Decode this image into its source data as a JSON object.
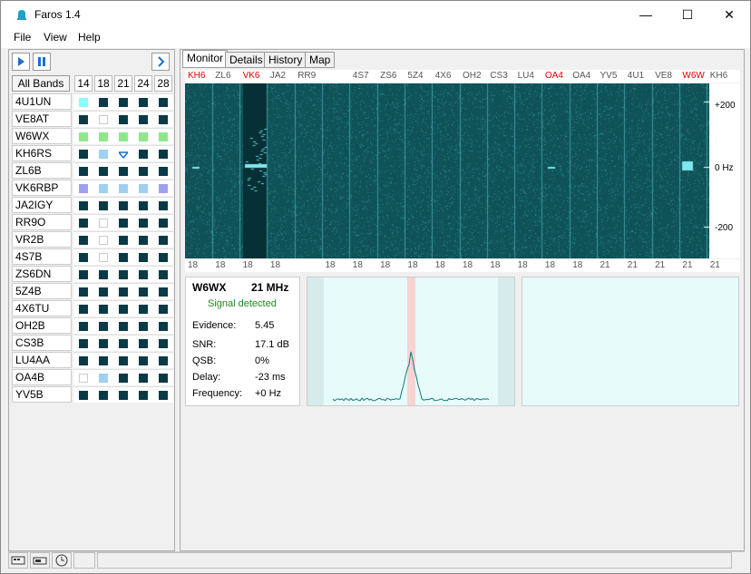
{
  "window": {
    "title": "Faros 1.4"
  },
  "menu": [
    "File",
    "View",
    "Help"
  ],
  "left": {
    "all_bands": "All Bands",
    "bands": [
      "14",
      "18",
      "21",
      "24",
      "28"
    ],
    "rows": [
      {
        "call": "4U1UN",
        "cells": [
          "#8ff",
          "#0a3a45",
          "#0a3a45",
          "#0a3a45",
          "#0a3a45"
        ]
      },
      {
        "call": "VE8AT",
        "cells": [
          "#0a3a45",
          "empty",
          "#0a3a45",
          "#0a3a45",
          "#0a3a45"
        ]
      },
      {
        "call": "W6WX",
        "cells": [
          "#8ee88a",
          "#8ee88a",
          "#8ee88a",
          "#8ee88a",
          "#8ee88a"
        ]
      },
      {
        "call": "KH6RS",
        "cells": [
          "#0a3a45",
          "#9fd0f0",
          "tri",
          "#0a3a45",
          "#0a3a45"
        ]
      },
      {
        "call": "ZL6B",
        "cells": [
          "#0a3a45",
          "#0a3a45",
          "#0a3a45",
          "#0a3a45",
          "#0a3a45"
        ]
      },
      {
        "call": "VK6RBP",
        "cells": [
          "#a0a0f0",
          "#9fd0f0",
          "#9fd0f0",
          "#9fd0f0",
          "#a0a0f0"
        ]
      },
      {
        "call": "JA2IGY",
        "cells": [
          "#0a3a45",
          "#0a3a45",
          "#0a3a45",
          "#0a3a45",
          "#0a3a45"
        ]
      },
      {
        "call": "RR9O",
        "cells": [
          "#0a3a45",
          "empty",
          "#0a3a45",
          "#0a3a45",
          "#0a3a45"
        ]
      },
      {
        "call": "VR2B",
        "cells": [
          "#0a3a45",
          "empty",
          "#0a3a45",
          "#0a3a45",
          "#0a3a45"
        ]
      },
      {
        "call": "4S7B",
        "cells": [
          "#0a3a45",
          "empty",
          "#0a3a45",
          "#0a3a45",
          "#0a3a45"
        ]
      },
      {
        "call": "ZS6DN",
        "cells": [
          "#0a3a45",
          "#0a3a45",
          "#0a3a45",
          "#0a3a45",
          "#0a3a45"
        ]
      },
      {
        "call": "5Z4B",
        "cells": [
          "#0a3a45",
          "#0a3a45",
          "#0a3a45",
          "#0a3a45",
          "#0a3a45"
        ]
      },
      {
        "call": "4X6TU",
        "cells": [
          "#0a3a45",
          "#0a3a45",
          "#0a3a45",
          "#0a3a45",
          "#0a3a45"
        ]
      },
      {
        "call": "OH2B",
        "cells": [
          "#0a3a45",
          "#0a3a45",
          "#0a3a45",
          "#0a3a45",
          "#0a3a45"
        ]
      },
      {
        "call": "CS3B",
        "cells": [
          "#0a3a45",
          "#0a3a45",
          "#0a3a45",
          "#0a3a45",
          "#0a3a45"
        ]
      },
      {
        "call": "LU4AA",
        "cells": [
          "#0a3a45",
          "#0a3a45",
          "#0a3a45",
          "#0a3a45",
          "#0a3a45"
        ]
      },
      {
        "call": "OA4B",
        "cells": [
          "empty",
          "#9fd0f0",
          "#0a3a45",
          "#0a3a45",
          "#0a3a45"
        ]
      },
      {
        "call": "YV5B",
        "cells": [
          "#0a3a45",
          "#0a3a45",
          "#0a3a45",
          "#0a3a45",
          "#0a3a45"
        ]
      }
    ]
  },
  "tabs": [
    "Monitor",
    "Details",
    "History",
    "Map"
  ],
  "top_labels": [
    {
      "t": "KH6",
      "red": true
    },
    {
      "t": "ZL6",
      "red": false
    },
    {
      "t": "VK6",
      "red": true
    },
    {
      "t": "JA2",
      "red": false
    },
    {
      "t": "RR9",
      "red": false
    },
    {
      "t": "",
      "red": false
    },
    {
      "t": "4S7",
      "red": false
    },
    {
      "t": "ZS6",
      "red": false
    },
    {
      "t": "5Z4",
      "red": false
    },
    {
      "t": "4X6",
      "red": false
    },
    {
      "t": "OH2",
      "red": false
    },
    {
      "t": "CS3",
      "red": false
    },
    {
      "t": "LU4",
      "red": false
    },
    {
      "t": "OA4",
      "red": true
    },
    {
      "t": "OA4",
      "red": false
    },
    {
      "t": "YV5",
      "red": false
    },
    {
      "t": "4U1",
      "red": false
    },
    {
      "t": "VE8",
      "red": false
    },
    {
      "t": "W6W",
      "red": true
    },
    {
      "t": "KH6",
      "red": false
    }
  ],
  "bottom_labels": [
    "18",
    "18",
    "18",
    "18",
    "",
    "18",
    "18",
    "18",
    "18",
    "18",
    "18",
    "18",
    "18",
    "18",
    "18",
    "21",
    "21",
    "21",
    "21",
    "21"
  ],
  "yscale": [
    "+200",
    "0 Hz",
    "-200"
  ],
  "info": {
    "call": "W6WX",
    "band": "21 MHz",
    "status": "Signal detected",
    "fields": [
      {
        "label": "Evidence:",
        "value": "5.45"
      },
      {
        "label": "SNR:",
        "value": "17.1 dB"
      },
      {
        "label": "QSB:",
        "value": "0%"
      },
      {
        "label": "Delay:",
        "value": "-23 ms"
      },
      {
        "label": "Frequency:",
        "value": "+0 Hz"
      }
    ]
  },
  "colors": {
    "spectrogram_bg": "#0f5258",
    "accent_green": "#1a8a1a",
    "plot_bg": "#e8fbfb"
  }
}
